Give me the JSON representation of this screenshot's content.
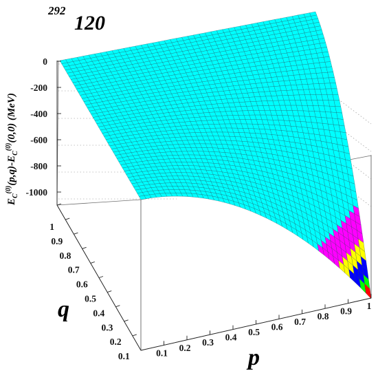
{
  "chart_data": {
    "type": "surface3d",
    "title_superscript": "292",
    "title": "120",
    "xlabel": "p",
    "ylabel": "q",
    "zlabel": "E",
    "zlabel_parts": [
      "E",
      "C",
      "(0)",
      "(p,q)-E",
      "C",
      "(0)",
      "(0,0) (MeV)"
    ],
    "x_ticks": [
      "0.1",
      "0.2",
      "0.3",
      "0.4",
      "0.5",
      "0.6",
      "0.7",
      "0.8",
      "0.9",
      "1"
    ],
    "y_ticks": [
      "0.1",
      "0.2",
      "0.3",
      "0.4",
      "0.5",
      "0.6",
      "0.7",
      "0.8",
      "0.9",
      "1"
    ],
    "z_ticks": [
      "0",
      "-200",
      "-400",
      "-600",
      "-800",
      "-1000"
    ],
    "xlim": [
      0,
      1
    ],
    "ylim": [
      0,
      1
    ],
    "zlim": [
      -1100,
      0
    ],
    "surface": "E_C(0)(p,q) - E_C(0)(0,0) = -1100 * p^2 * q^2",
    "color_bands": [
      {
        "from": 0,
        "to": -650,
        "color": "#00ffff"
      },
      {
        "from": -650,
        "to": -800,
        "color": "#ff00ff"
      },
      {
        "from": -800,
        "to": -900,
        "color": "#ffff00"
      },
      {
        "from": -900,
        "to": -1000,
        "color": "#0000ff"
      },
      {
        "from": -1000,
        "to": -1050,
        "color": "#00ff00"
      },
      {
        "from": -1050,
        "to": -1100,
        "color": "#ff0000"
      }
    ],
    "grid": true,
    "mesh_lines": true
  }
}
